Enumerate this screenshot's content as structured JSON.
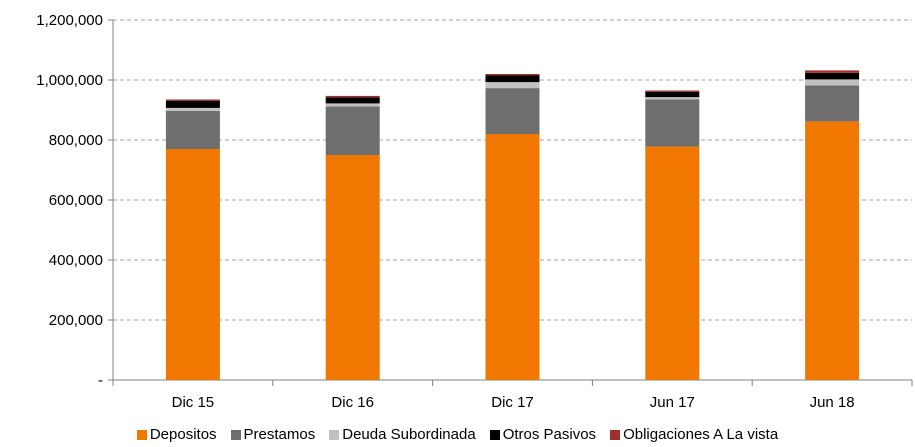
{
  "chart_data": {
    "type": "bar",
    "stacked": true,
    "categories": [
      "Dic 15",
      "Dic 16",
      "Dic 17",
      "Jun 17",
      "Jun 18"
    ],
    "series": [
      {
        "name": "Depositos",
        "color": "#F07800",
        "values": [
          770000,
          750000,
          820000,
          778000,
          862000
        ]
      },
      {
        "name": "Prestamos",
        "color": "#6E6E6E",
        "values": [
          127000,
          162000,
          153000,
          157000,
          120000
        ]
      },
      {
        "name": "Deuda Subordinada",
        "color": "#C0C0C0",
        "values": [
          10000,
          10000,
          20000,
          8000,
          20000
        ]
      },
      {
        "name": "Otros Pasivos",
        "color": "#000000",
        "values": [
          23000,
          20000,
          22000,
          18000,
          22000
        ]
      },
      {
        "name": "Obligaciones A La vista",
        "color": "#A0302A",
        "values": [
          5000,
          5000,
          5000,
          4000,
          8000
        ]
      }
    ],
    "y_ticks": [
      "-",
      "200,000",
      "400,000",
      "600,000",
      "800,000",
      "1,000,000",
      "1,200,000"
    ],
    "ylim": [
      0,
      1200000
    ],
    "grid": true,
    "legend_position": "bottom"
  }
}
